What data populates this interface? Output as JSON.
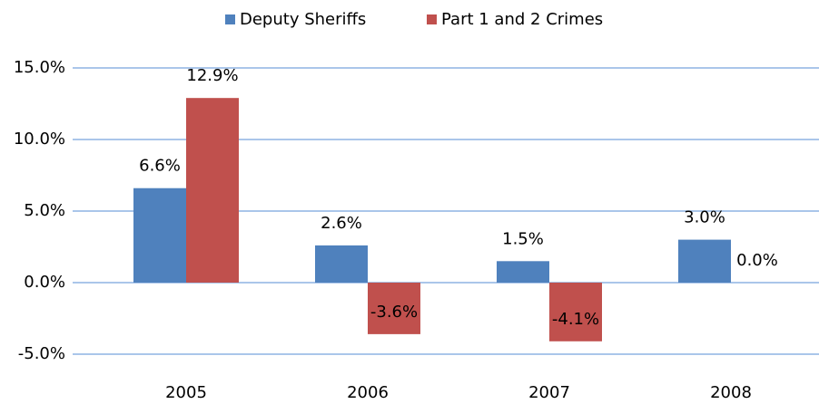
{
  "chart_data": {
    "type": "bar",
    "categories": [
      "2005",
      "2006",
      "2007",
      "2008"
    ],
    "series": [
      {
        "name": "Deputy Sheriffs",
        "color": "#4f81bd",
        "values": [
          6.6,
          2.6,
          1.5,
          3.0
        ],
        "value_labels": [
          "6.6%",
          "2.6%",
          "1.5%",
          "3.0%"
        ]
      },
      {
        "name": "Part 1 and 2 Crimes",
        "color": "#c0504d",
        "values": [
          12.9,
          -3.6,
          -4.1,
          0.0
        ],
        "value_labels": [
          "12.9%",
          "-3.6%",
          "-4.1%",
          "0.0%"
        ]
      }
    ],
    "ylim": [
      -5,
      15
    ],
    "yticks": [
      {
        "value": -5,
        "label": "-5.0%"
      },
      {
        "value": 0,
        "label": "0.0%"
      },
      {
        "value": 5,
        "label": "5.0%"
      },
      {
        "value": 10,
        "label": "10.0%"
      },
      {
        "value": 15,
        "label": "15.0%"
      }
    ],
    "grid": true,
    "legend": "top"
  }
}
